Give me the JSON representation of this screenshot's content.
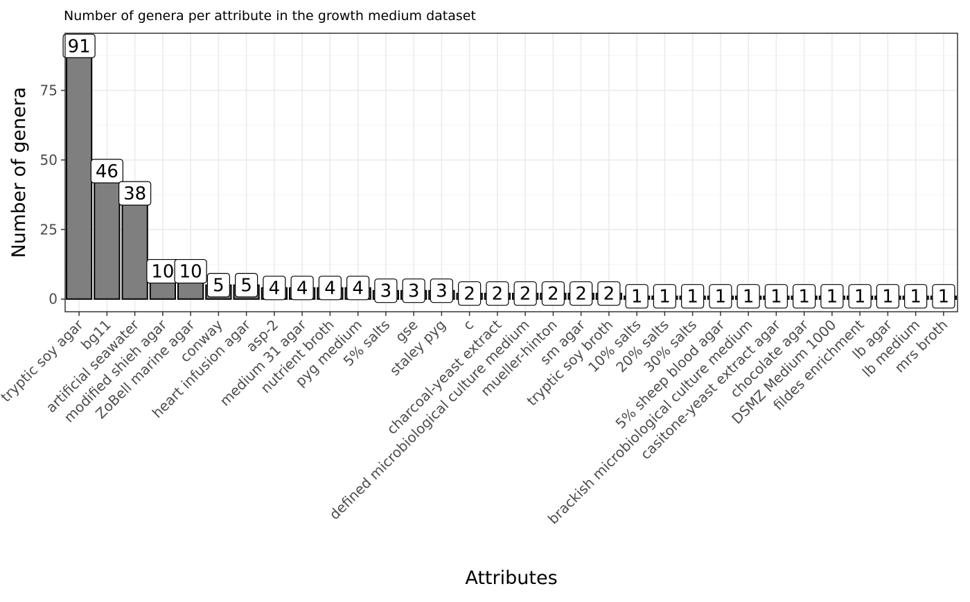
{
  "chart_data": {
    "type": "bar",
    "title": "Number of genera per attribute in the growth medium dataset",
    "xlabel": "Attributes",
    "ylabel": "Number of genera",
    "ylim": [
      -4.55,
      95.55
    ],
    "yticks": [
      0,
      25,
      50,
      75
    ],
    "grid": true,
    "categories": [
      "tryptic soy agar",
      "bg11",
      "artificial seawater",
      "modified shieh agar",
      "ZoBell marine agar",
      "conway",
      "heart infusion agar",
      "asp-2",
      "medium 31 agar",
      "nutrient broth",
      "pyg medium",
      "5% salts",
      "gse",
      "staley pyg",
      "c",
      "charcoal-yeast extract",
      "defined microbiological culture medium",
      "mueller-hinton",
      "sm agar",
      "tryptic soy broth",
      "10% salts",
      "20% salts",
      "30% salts",
      "5% sheep blood agar",
      "brackish microbiological culture medium",
      "casitone-yeast extract agar",
      "chocolate agar",
      "DSMZ Medium 1000",
      "fildes enrichment",
      "lb agar",
      "lb medium",
      "mrs broth"
    ],
    "values": [
      91,
      46,
      38,
      10,
      10,
      5,
      5,
      4,
      4,
      4,
      4,
      3,
      3,
      3,
      2,
      2,
      2,
      2,
      2,
      2,
      1,
      1,
      1,
      1,
      1,
      1,
      1,
      1,
      1,
      1,
      1,
      1
    ],
    "colors": {
      "bar_fill": "#7f7f7f",
      "bar_stroke": "#000000",
      "grid_major": "#ebebeb",
      "grid_minor": "#f5f5f5",
      "panel_border": "#333333",
      "tick_text": "#4d4d4d"
    }
  }
}
